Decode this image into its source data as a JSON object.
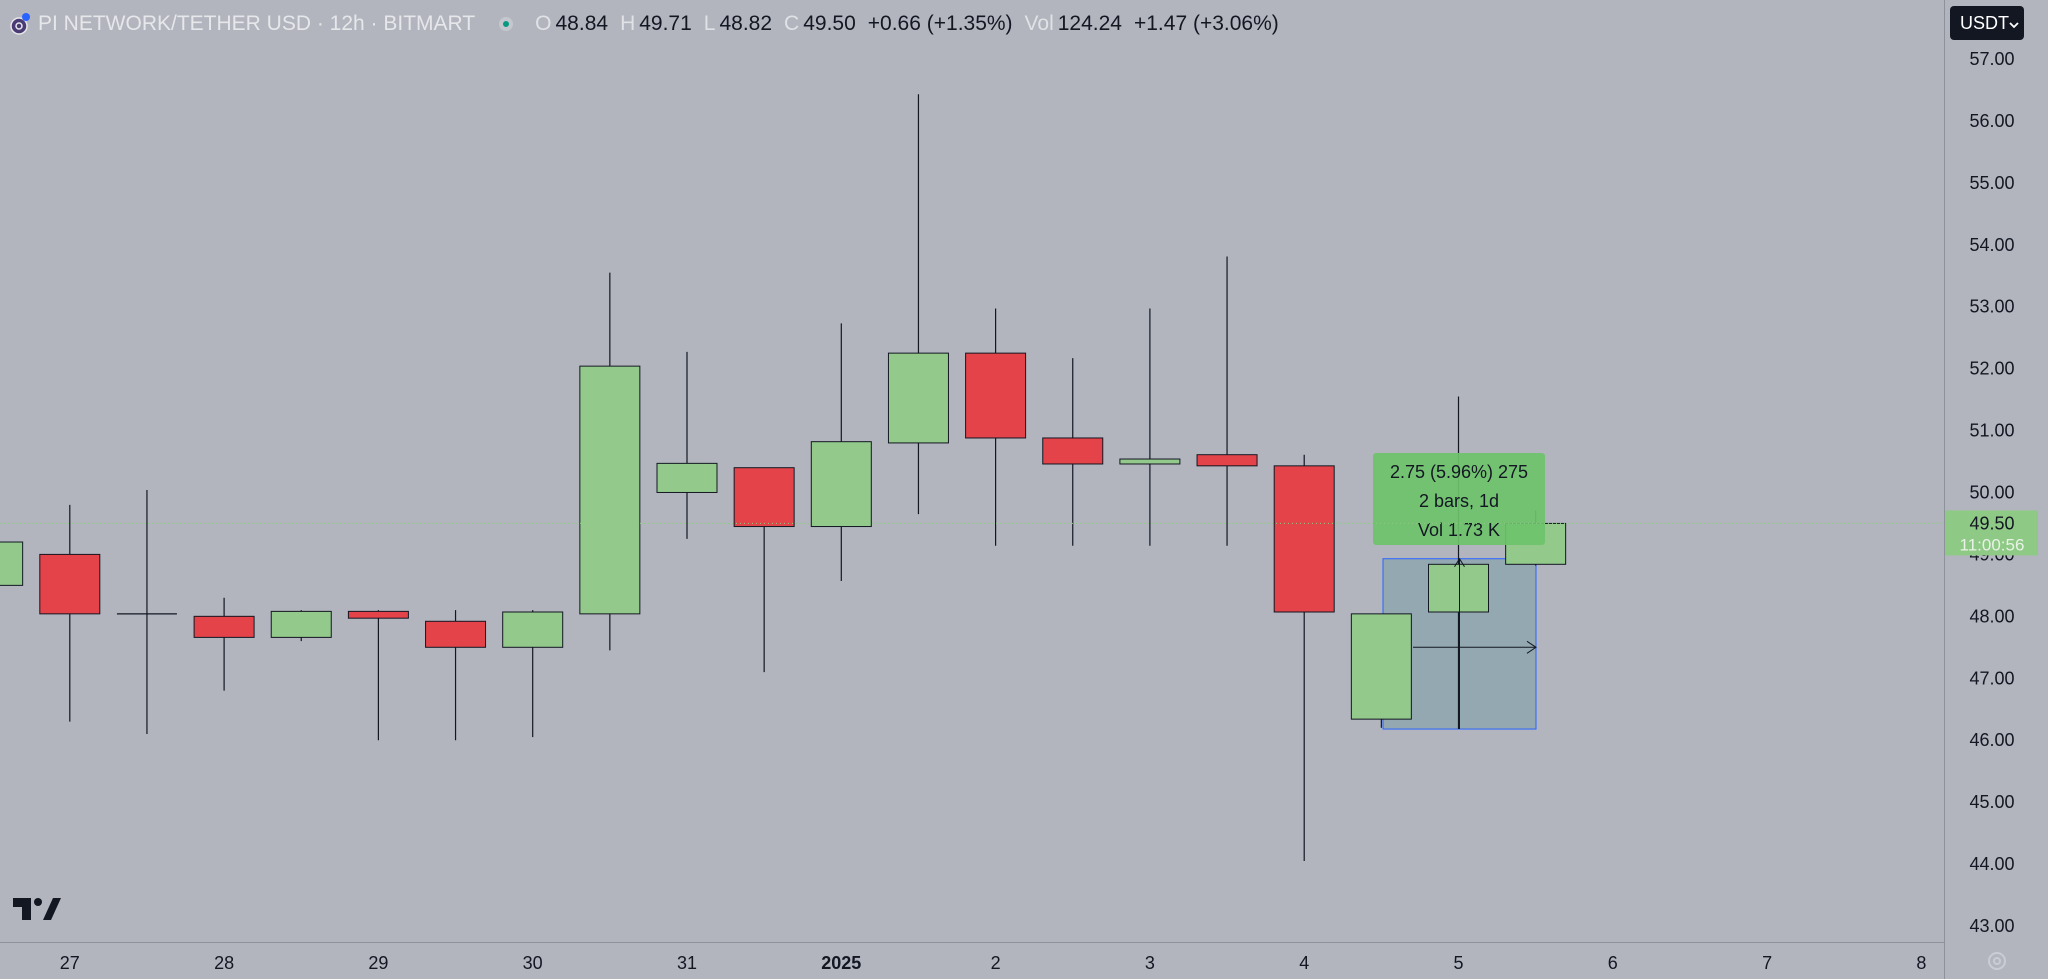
{
  "header": {
    "symbol": "PI NETWORK/TETHER USD · 12h · BITMART",
    "open_label": "O",
    "open": "48.84",
    "high_label": "H",
    "high": "49.71",
    "low_label": "L",
    "low": "48.82",
    "close_label": "C",
    "close": "49.50",
    "change": "+0.66 (+1.35%)",
    "vol_label": "Vol",
    "vol": "124.24",
    "vol_change": "+1.47 (+3.06%)"
  },
  "currency_button": {
    "label": "USDT",
    "icon": "chevron-down-icon"
  },
  "price_label": {
    "price": "49.50",
    "countdown": "11:00:56"
  },
  "measure_tooltip": {
    "line1": "2.75 (5.96%) 275",
    "line2": "2 bars, 1d",
    "line3": "Vol 1.73 K"
  },
  "logo": "tradingview-logo-icon",
  "settings_icon": "settings-icon",
  "colors": {
    "background": "#b2b5be",
    "up": "#93c98b",
    "down": "#e44349",
    "wick": "#131722",
    "measure_fill": "#8da6ae",
    "measure_label": "#6ec36b",
    "price_label": "#8ec985"
  },
  "chart_data": {
    "type": "candlestick",
    "title": "PI NETWORK/TETHER USD · 12h · BITMART",
    "x_ticks": [
      "27",
      "28",
      "29",
      "30",
      "31",
      "2025",
      "2",
      "3",
      "4",
      "5",
      "6",
      "7",
      "8"
    ],
    "y_ticks": [
      "57.00",
      "56.00",
      "55.00",
      "54.00",
      "53.00",
      "52.00",
      "51.00",
      "50.00",
      "49.00",
      "48.00",
      "47.00",
      "46.00",
      "45.00",
      "44.00",
      "43.00"
    ],
    "ylim": [
      42.7,
      57.3
    ],
    "candles": [
      {
        "t": 26.5,
        "o": 48.5,
        "h": 49.4,
        "l": 48.0,
        "c": 49.2
      },
      {
        "t": 27.0,
        "o": 49.0,
        "h": 49.8,
        "l": 46.3,
        "c": 48.04
      },
      {
        "t": 27.5,
        "o": 48.04,
        "h": 50.04,
        "l": 46.1,
        "c": 48.04
      },
      {
        "t": 28.0,
        "o": 48.0,
        "h": 48.3,
        "l": 46.8,
        "c": 47.66
      },
      {
        "t": 28.5,
        "o": 47.66,
        "h": 48.1,
        "l": 47.6,
        "c": 48.08
      },
      {
        "t": 29.0,
        "o": 48.08,
        "h": 48.1,
        "l": 46.0,
        "c": 47.97
      },
      {
        "t": 29.5,
        "o": 47.92,
        "h": 48.1,
        "l": 46.0,
        "c": 47.5
      },
      {
        "t": 30.0,
        "o": 47.5,
        "h": 48.1,
        "l": 46.05,
        "c": 48.07
      },
      {
        "t": 30.5,
        "o": 48.04,
        "h": 53.55,
        "l": 47.45,
        "c": 52.04
      },
      {
        "t": 31.0,
        "o": 50.0,
        "h": 52.27,
        "l": 49.25,
        "c": 50.47
      },
      {
        "t": 31.5,
        "o": 50.4,
        "h": 50.4,
        "l": 47.1,
        "c": 49.45
      },
      {
        "t": 32.0,
        "o": 49.45,
        "h": 52.73,
        "l": 48.57,
        "c": 50.82
      },
      {
        "t": 32.5,
        "o": 50.8,
        "h": 56.43,
        "l": 49.65,
        "c": 52.25
      },
      {
        "t": 33.0,
        "o": 52.25,
        "h": 52.97,
        "l": 49.14,
        "c": 50.88
      },
      {
        "t": 33.5,
        "o": 50.88,
        "h": 52.17,
        "l": 49.14,
        "c": 50.46
      },
      {
        "t": 34.0,
        "o": 50.46,
        "h": 52.97,
        "l": 49.14,
        "c": 50.54
      },
      {
        "t": 34.5,
        "o": 50.61,
        "h": 53.81,
        "l": 49.14,
        "c": 50.43
      },
      {
        "t": 35.0,
        "o": 50.43,
        "h": 50.61,
        "l": 44.05,
        "c": 48.07
      },
      {
        "t": 35.5,
        "o": 46.34,
        "h": 48.0,
        "l": 46.2,
        "c": 48.04
      },
      {
        "t": 36.0,
        "o": 48.07,
        "h": 51.55,
        "l": 46.18,
        "c": 48.84
      },
      {
        "t": 36.5,
        "o": 48.84,
        "h": 49.71,
        "l": 48.82,
        "c": 49.5
      }
    ],
    "measure": {
      "t_start": 35.5,
      "t_end": 36.5,
      "p_low": 46.18,
      "p_high": 48.93
    }
  }
}
